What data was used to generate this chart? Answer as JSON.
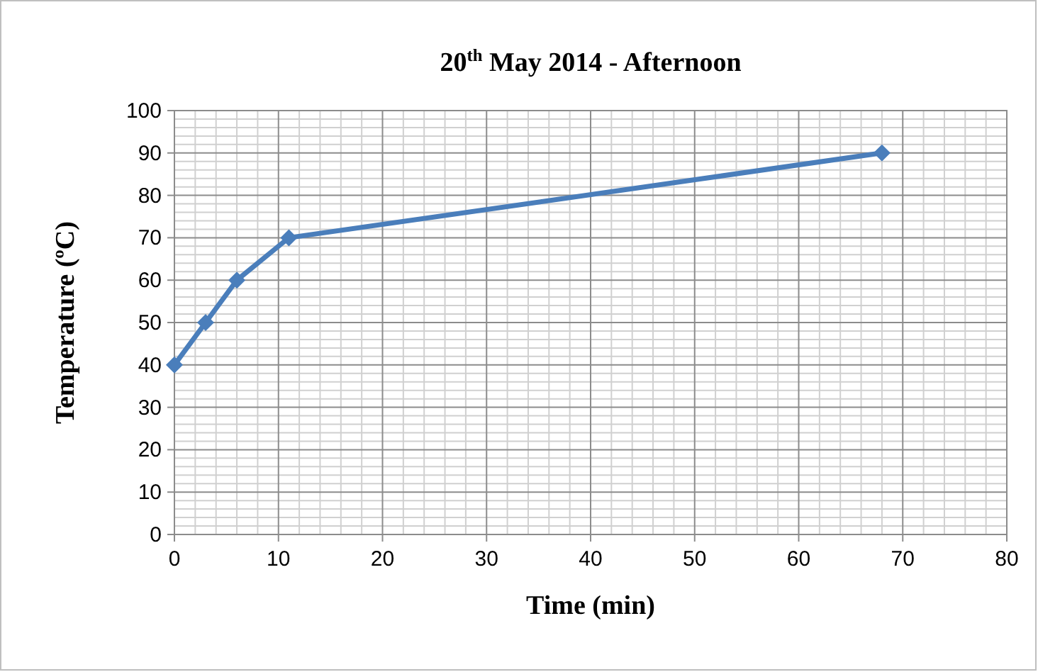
{
  "chart_data": {
    "type": "line",
    "title": "20$^{th}$ May 2014 - Afternoon",
    "xlabel": "Time (min)",
    "ylabel": "Temperature (ºC)",
    "x": [
      0,
      3,
      6,
      11,
      68
    ],
    "series": [
      {
        "color": "#4a7ebb",
        "values": [
          40,
          50,
          60,
          70,
          90
        ]
      }
    ],
    "xlim": [
      0,
      80
    ],
    "xticks": [
      0,
      10,
      20,
      30,
      40,
      50,
      60,
      70,
      80
    ],
    "ylim": [
      0,
      100
    ],
    "yticks": [
      0,
      10,
      20,
      30,
      40,
      50,
      60,
      70,
      80,
      90,
      100
    ],
    "grid": true,
    "marker": "diamond",
    "line_style": "solid"
  }
}
